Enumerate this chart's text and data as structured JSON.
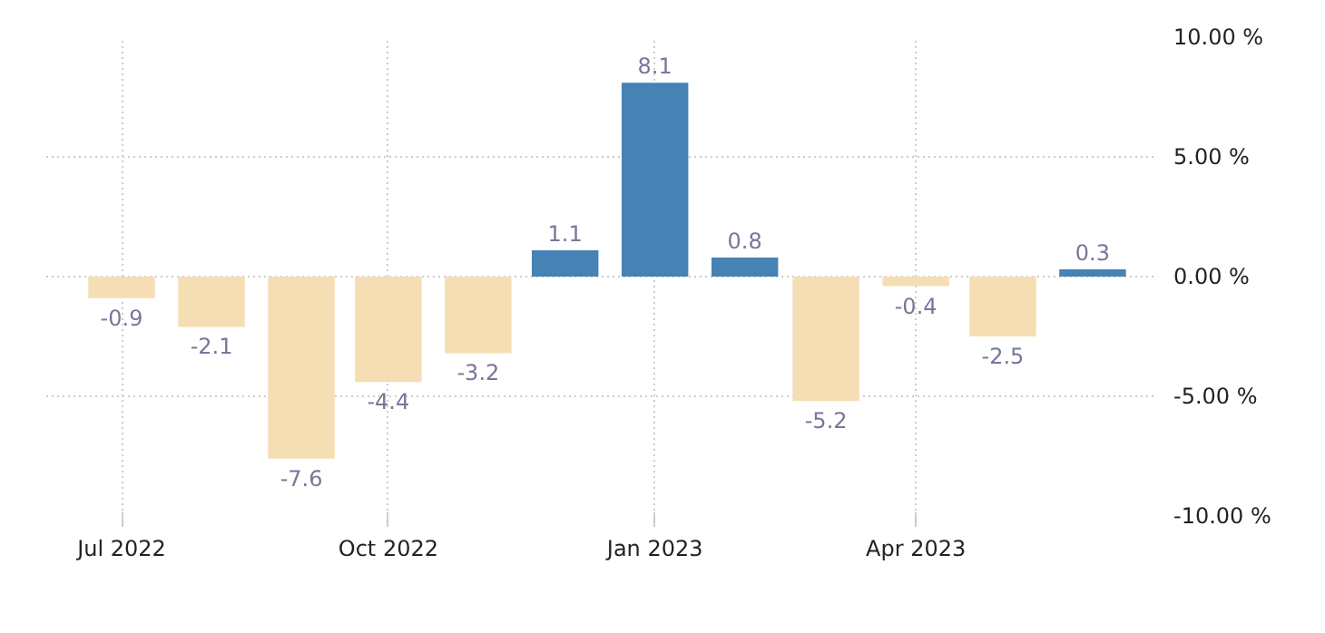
{
  "chart_data": {
    "type": "bar",
    "x": [
      "2022-07",
      "2022-08",
      "2022-09",
      "2022-10",
      "2022-11",
      "2022-12",
      "2023-01",
      "2023-02",
      "2023-03",
      "2023-04",
      "2023-05",
      "2023-06"
    ],
    "values": [
      -0.9,
      -2.1,
      -7.6,
      -4.4,
      -3.2,
      1.1,
      8.1,
      0.8,
      -5.2,
      -0.4,
      -2.5,
      0.3
    ],
    "colors": [
      "#f5deb3",
      "#f5deb3",
      "#f5deb3",
      "#f5deb3",
      "#f5deb3",
      "#4682b4",
      "#4682b4",
      "#4682b4",
      "#f5deb3",
      "#f5deb3",
      "#f5deb3",
      "#4682b4"
    ],
    "data_labels": true,
    "xlim": [
      "2022-06-05",
      "2023-06-22"
    ],
    "xticks": [
      {
        "value": "2022-07",
        "label": "Jul 2022"
      },
      {
        "value": "2022-10",
        "label": "Oct 2022"
      },
      {
        "value": "2023-01",
        "label": "Jan 2023"
      },
      {
        "value": "2023-04",
        "label": "Apr 2023"
      }
    ],
    "ylim": [
      -10,
      10
    ],
    "yticks": [
      {
        "value": 10,
        "label": "10.00 %"
      },
      {
        "value": 5,
        "label": "5.00 %"
      },
      {
        "value": 0,
        "label": "0.00 %"
      },
      {
        "value": -5,
        "label": "-5.00 %"
      },
      {
        "value": -10,
        "label": "-10.00 %"
      }
    ],
    "grid": true
  }
}
